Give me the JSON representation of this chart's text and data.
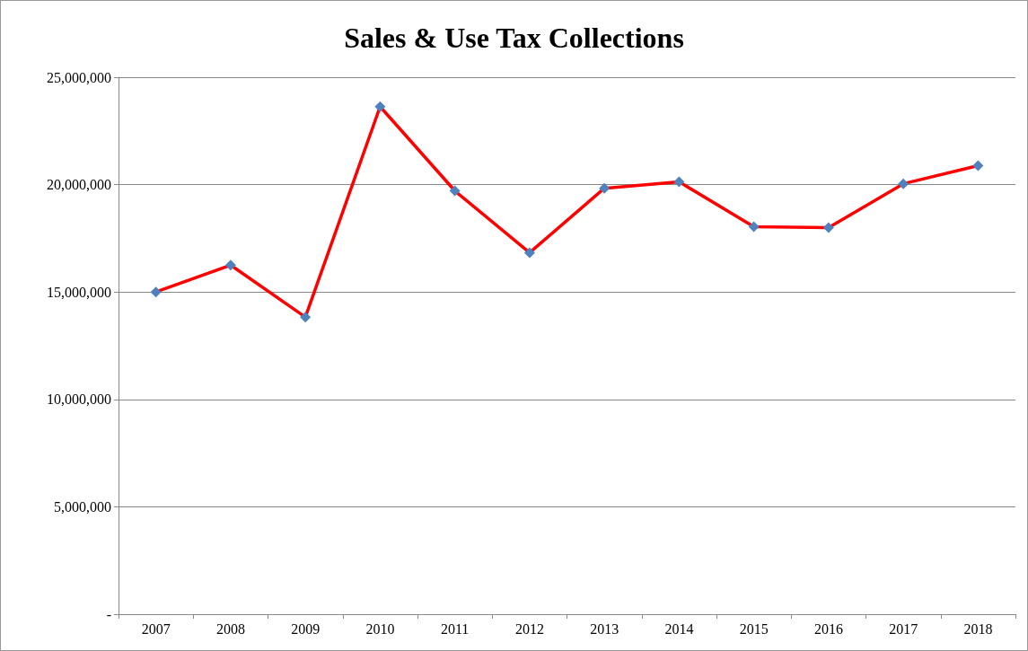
{
  "chart_data": {
    "type": "line",
    "title": "Sales & Use Tax Collections",
    "categories": [
      "2007",
      "2008",
      "2009",
      "2010",
      "2011",
      "2012",
      "2013",
      "2014",
      "2015",
      "2016",
      "2017",
      "2018"
    ],
    "series": [
      {
        "color": "#ff0000",
        "colors": [
          "#4f81bd",
          "#4f81bd",
          "#4f81bd",
          "#4f81bd",
          "#4f81bd",
          "#4f81bd",
          "#4f81bd",
          "#4f81bd",
          "#4f81bd",
          "#4f81bd",
          "#4f81bd",
          "#4f81bd"
        ],
        "values": [
          15000000,
          16250000,
          13830000,
          23630000,
          19710000,
          16830000,
          19830000,
          20130000,
          18040000,
          18000000,
          20040000,
          20880000
        ]
      }
    ],
    "ylim": [
      0,
      25000000
    ],
    "yticks": [
      {
        "value": 0,
        "label": "-"
      },
      {
        "value": 5000000,
        "label": "5,000,000"
      },
      {
        "value": 10000000,
        "label": "10,000,000"
      },
      {
        "value": 15000000,
        "label": "15,000,000"
      },
      {
        "value": 20000000,
        "label": "20,000,000"
      },
      {
        "value": 25000000,
        "label": "25,000,000"
      }
    ],
    "grid": "y",
    "marker": "diamond",
    "line_style": "solid"
  }
}
